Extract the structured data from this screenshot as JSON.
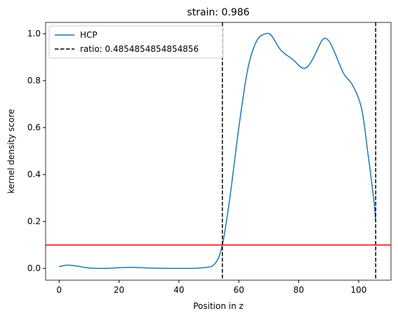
{
  "chart_data": {
    "type": "line",
    "title": "strain: 0.986",
    "xlabel": "Position in z",
    "ylabel": "kernel density score",
    "xlim": [
      -4.5,
      110.8
    ],
    "ylim": [
      -0.05,
      1.048
    ],
    "xticks": [
      0,
      20,
      40,
      60,
      80,
      100
    ],
    "yticks": [
      {
        "value": 0,
        "label": "0.0"
      },
      {
        "value": 0.2,
        "label": "0.2"
      },
      {
        "value": 0.4,
        "label": "0.4"
      },
      {
        "value": 0.6,
        "label": "0.6"
      },
      {
        "value": 0.8,
        "label": "0.8"
      },
      {
        "value": 1,
        "label": "1.0"
      }
    ],
    "legend": "upper left",
    "series": [
      {
        "name": "HCP",
        "color": "#1f77b4",
        "x": [
          0,
          3,
          6,
          10,
          15,
          20,
          24,
          30,
          40,
          48,
          52,
          54.5,
          57,
          60,
          63,
          66,
          69,
          71,
          74,
          78,
          81,
          83,
          85,
          88,
          90,
          92,
          95,
          98,
          101,
          103,
          105,
          105.7
        ],
        "values": [
          0.008,
          0.014,
          0.01,
          0.002,
          0.0,
          0.003,
          0.005,
          0.002,
          0.0,
          0.003,
          0.02,
          0.1,
          0.3,
          0.6,
          0.85,
          0.97,
          1.0,
          0.99,
          0.93,
          0.89,
          0.855,
          0.86,
          0.9,
          0.975,
          0.97,
          0.92,
          0.83,
          0.78,
          0.68,
          0.5,
          0.3,
          0.2
        ]
      }
    ],
    "vlines": {
      "name": "ratio: 0.4854854854854856",
      "color": "#000000",
      "values": [
        54.5,
        105.7
      ]
    },
    "hline": {
      "value": 0.1,
      "color": "#ff0000"
    }
  }
}
